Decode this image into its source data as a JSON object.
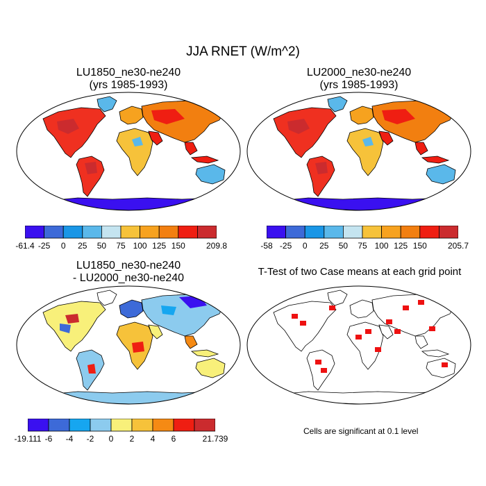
{
  "main_title": "JJA RNET (W/m^2)",
  "panels": [
    {
      "id": "p1",
      "title1": "LU1850_ne30-ne240",
      "title2": "(yrs 1985-1993)"
    },
    {
      "id": "p2",
      "title1": "LU2000_ne30-ne240",
      "title2": "(yrs 1985-1993)"
    },
    {
      "id": "p3",
      "title1": "LU1850_ne30-ne240",
      "title2": "- LU2000_ne30-ne240"
    },
    {
      "id": "p4",
      "title1": "T-Test of two Case means at each grid point",
      "title2": ""
    }
  ],
  "colorbars": [
    {
      "labels": [
        "-61.4",
        "-25",
        "0",
        "25",
        "50",
        "75",
        "100",
        "125",
        "150",
        "209.8"
      ],
      "colors": [
        "#3a10f0",
        "#3d6ad8",
        "#1a96e6",
        "#5ab8ea",
        "#c4e4f0",
        "#f6c23a",
        "#f7a21f",
        "#f27f10",
        "#ef1e12",
        "#cb2b2e"
      ]
    },
    {
      "labels": [
        "-58",
        "-25",
        "0",
        "25",
        "50",
        "75",
        "100",
        "125",
        "150",
        "205.7"
      ],
      "colors": [
        "#3a10f0",
        "#3d6ad8",
        "#1a96e6",
        "#5ab8ea",
        "#c4e4f0",
        "#f6c23a",
        "#f7a21f",
        "#f27f10",
        "#ef1e12",
        "#cb2b2e"
      ]
    },
    {
      "labels": [
        "-19.111",
        "-6",
        "-4",
        "-2",
        "0",
        "2",
        "4",
        "6",
        "21.739"
      ],
      "colors": [
        "#3a10f0",
        "#3d6ad8",
        "#16a6f0",
        "#8ccbee",
        "#f8f07a",
        "#f6c23a",
        "#f58a14",
        "#ef1e12",
        "#cb2b2e"
      ]
    }
  ],
  "significance_note": "Cells are significant at 0.1 level",
  "significance_color": "#ee1111"
}
